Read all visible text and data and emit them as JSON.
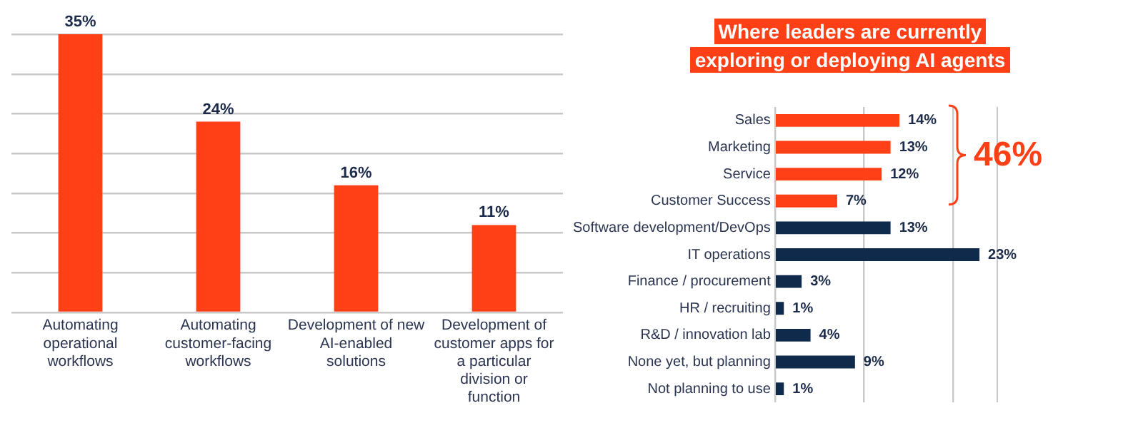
{
  "chart_data": [
    {
      "type": "bar",
      "categories": [
        "Automating operational workflows",
        "Automating customer-facing workflows",
        "Development of new AI-enabled solutions",
        "Development of customer apps for a particular division or function"
      ],
      "values": [
        35,
        24,
        16,
        11
      ],
      "color": "#ff4016",
      "value_labels": [
        "35%",
        "24%",
        "16%",
        "11%"
      ],
      "ylim": [
        0,
        35
      ],
      "yticks": [
        {
          "value": 0,
          "label": null
        },
        {
          "value": 5,
          "label": null
        },
        {
          "value": 10,
          "label": null
        },
        {
          "value": 15,
          "label": null
        },
        {
          "value": 20,
          "label": null
        },
        {
          "value": 25,
          "label": null
        },
        {
          "value": 30,
          "label": null
        },
        {
          "value": 35,
          "label": null
        }
      ],
      "grid": "y",
      "tick_labels": "x"
    },
    {
      "type": "bar",
      "title": "Where leaders are currently exploring or deploying AI agents",
      "orientation": "horizontal",
      "categories": [
        "Sales",
        "Marketing",
        "Service",
        "Customer Success",
        "Software development/DevOps",
        "IT operations",
        "Finance / procurement",
        "HR / recruiting",
        "R&D / innovation lab",
        "None yet, but planning",
        "Not planning to use"
      ],
      "values": [
        14,
        13,
        12,
        7,
        13,
        23,
        3,
        1,
        4,
        9,
        1
      ],
      "colors": [
        "#ff4016",
        "#ff4016",
        "#ff4016",
        "#ff4016",
        "#0f2a4a",
        "#0f2a4a",
        "#0f2a4a",
        "#0f2a4a",
        "#0f2a4a",
        "#0f2a4a",
        "#0f2a4a"
      ],
      "xlim": [
        0,
        25
      ],
      "value_labels": [
        "14%",
        "13%",
        "12%",
        "7%",
        "13%",
        "23%",
        "3%",
        "1%",
        "4%",
        "9%",
        "1%"
      ],
      "xticks": [
        {
          "value": 0,
          "label": null
        },
        {
          "value": 10,
          "label": null
        },
        {
          "value": 20,
          "label": null
        }
      ],
      "grid": "x",
      "tick_labels": "y",
      "annotations": [
        "46%"
      ]
    }
  ]
}
